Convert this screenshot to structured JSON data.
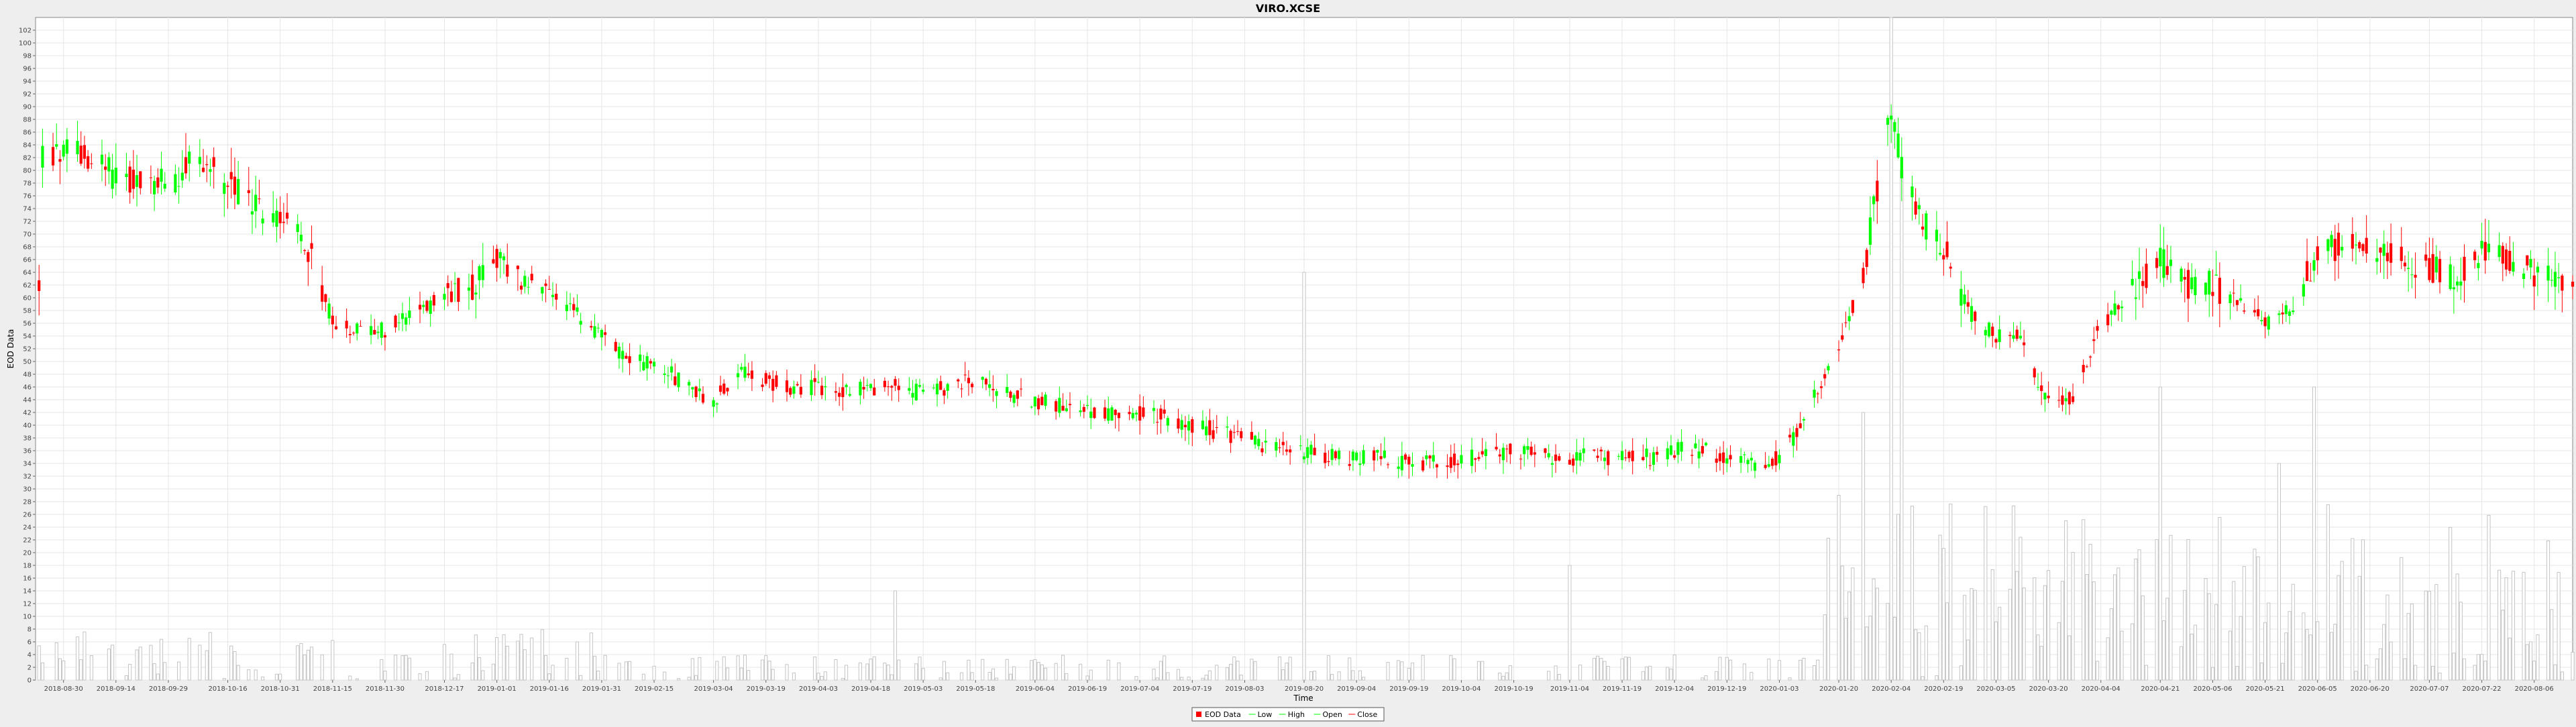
{
  "chart_data": {
    "type": "candlestick",
    "title": "VIRO.XCSE",
    "xlabel": "Time",
    "ylabel": "EOD Data",
    "ylim": [
      0,
      104
    ],
    "xlim": [
      "2018-08-22",
      "2020-08-17"
    ],
    "grid": true,
    "legend": {
      "placement": "bottom-center",
      "entries": [
        "EOD Data",
        "Low",
        "High",
        "Open",
        "Close"
      ]
    },
    "y_ticks": [
      0,
      2,
      4,
      6,
      8,
      10,
      12,
      14,
      16,
      18,
      20,
      22,
      24,
      26,
      28,
      30,
      32,
      34,
      36,
      38,
      40,
      42,
      44,
      46,
      48,
      50,
      52,
      54,
      56,
      58,
      60,
      62,
      64,
      66,
      68,
      70,
      72,
      74,
      76,
      78,
      80,
      82,
      84,
      86,
      88,
      90,
      92,
      94,
      96,
      98,
      100,
      102
    ],
    "x_ticks": [
      "2018-08-30",
      "2018-09-14",
      "2018-09-29",
      "2018-10-16",
      "2018-10-31",
      "2018-11-15",
      "2018-11-30",
      "2018-12-17",
      "2019-01-01",
      "2019-01-16",
      "2019-01-31",
      "2019-02-15",
      "2019-03-04",
      "2019-03-19",
      "2019-04-03",
      "2019-04-18",
      "2019-05-03",
      "2019-05-18",
      "2019-06-04",
      "2019-06-19",
      "2019-07-04",
      "2019-07-19",
      "2019-08-03",
      "2019-08-20",
      "2019-09-04",
      "2019-09-19",
      "2019-10-04",
      "2019-10-19",
      "2019-11-04",
      "2019-11-19",
      "2019-12-04",
      "2019-12-19",
      "2020-01-03",
      "2020-01-20",
      "2020-02-04",
      "2020-02-19",
      "2020-03-05",
      "2020-03-20",
      "2020-04-04",
      "2020-04-21",
      "2020-05-06",
      "2020-05-21",
      "2020-06-05",
      "2020-06-20",
      "2020-07-07",
      "2020-07-22",
      "2020-08-06"
    ],
    "price_anchors": [
      [
        "2018-08-24",
        82
      ],
      [
        "2018-09-05",
        83
      ],
      [
        "2018-09-14",
        79
      ],
      [
        "2018-09-22",
        78
      ],
      [
        "2018-09-29",
        78
      ],
      [
        "2018-10-08",
        82
      ],
      [
        "2018-10-16",
        78
      ],
      [
        "2018-10-25",
        74
      ],
      [
        "2018-10-31",
        72
      ],
      [
        "2018-11-08",
        68
      ],
      [
        "2018-11-15",
        56
      ],
      [
        "2018-11-22",
        55
      ],
      [
        "2018-11-30",
        55
      ],
      [
        "2018-12-10",
        58
      ],
      [
        "2018-12-17",
        60
      ],
      [
        "2018-12-25",
        62
      ],
      [
        "2019-01-01",
        66
      ],
      [
        "2019-01-10",
        62
      ],
      [
        "2019-01-16",
        60
      ],
      [
        "2019-01-25",
        57
      ],
      [
        "2019-01-31",
        54
      ],
      [
        "2019-02-08",
        50
      ],
      [
        "2019-02-15",
        50
      ],
      [
        "2019-02-25",
        46
      ],
      [
        "2019-03-04",
        44
      ],
      [
        "2019-03-12",
        49
      ],
      [
        "2019-03-19",
        47
      ],
      [
        "2019-03-27",
        46
      ],
      [
        "2019-04-03",
        46
      ],
      [
        "2019-04-12",
        45
      ],
      [
        "2019-04-18",
        46
      ],
      [
        "2019-04-26",
        46
      ],
      [
        "2019-05-03",
        45
      ],
      [
        "2019-05-10",
        46
      ],
      [
        "2019-05-18",
        47
      ],
      [
        "2019-05-26",
        45
      ],
      [
        "2019-06-04",
        44
      ],
      [
        "2019-06-12",
        43
      ],
      [
        "2019-06-19",
        42
      ],
      [
        "2019-06-27",
        42
      ],
      [
        "2019-07-04",
        42
      ],
      [
        "2019-07-12",
        41
      ],
      [
        "2019-07-19",
        40
      ],
      [
        "2019-07-27",
        39
      ],
      [
        "2019-08-03",
        38
      ],
      [
        "2019-08-12",
        36
      ],
      [
        "2019-08-20",
        36
      ],
      [
        "2019-08-28",
        35
      ],
      [
        "2019-09-04",
        35
      ],
      [
        "2019-09-12",
        35
      ],
      [
        "2019-09-19",
        34
      ],
      [
        "2019-09-27",
        34
      ],
      [
        "2019-10-04",
        35
      ],
      [
        "2019-10-12",
        35
      ],
      [
        "2019-10-19",
        36
      ],
      [
        "2019-10-27",
        35
      ],
      [
        "2019-11-04",
        35
      ],
      [
        "2019-11-12",
        35
      ],
      [
        "2019-11-19",
        35
      ],
      [
        "2019-11-27",
        35
      ],
      [
        "2019-12-04",
        36
      ],
      [
        "2019-12-12",
        36
      ],
      [
        "2019-12-19",
        35
      ],
      [
        "2019-12-27",
        34
      ],
      [
        "2020-01-03",
        35
      ],
      [
        "2020-01-10",
        40
      ],
      [
        "2020-01-15",
        47
      ],
      [
        "2020-01-20",
        52
      ],
      [
        "2020-01-27",
        64
      ],
      [
        "2020-02-01",
        80
      ],
      [
        "2020-02-04",
        90
      ],
      [
        "2020-02-08",
        78
      ],
      [
        "2020-02-13",
        72
      ],
      [
        "2020-02-19",
        68
      ],
      [
        "2020-02-26",
        58
      ],
      [
        "2020-03-05",
        54
      ],
      [
        "2020-03-12",
        54
      ],
      [
        "2020-03-17",
        46
      ],
      [
        "2020-03-22",
        43
      ],
      [
        "2020-03-28",
        45
      ],
      [
        "2020-04-04",
        56
      ],
      [
        "2020-04-12",
        60
      ],
      [
        "2020-04-21",
        66
      ],
      [
        "2020-04-28",
        62
      ],
      [
        "2020-05-06",
        62
      ],
      [
        "2020-05-12",
        60
      ],
      [
        "2020-05-21",
        56
      ],
      [
        "2020-05-28",
        58
      ],
      [
        "2020-06-05",
        67
      ],
      [
        "2020-06-12",
        68
      ],
      [
        "2020-06-20",
        67
      ],
      [
        "2020-06-28",
        66
      ],
      [
        "2020-07-07",
        65
      ],
      [
        "2020-07-15",
        63
      ],
      [
        "2020-07-22",
        67
      ],
      [
        "2020-07-30",
        66
      ],
      [
        "2020-08-06",
        64
      ],
      [
        "2020-08-17",
        62
      ]
    ],
    "volume_peaks": [
      [
        "2019-08-20",
        64
      ],
      [
        "2020-02-01",
        88
      ],
      [
        "2020-02-04",
        104
      ],
      [
        "2020-02-07",
        80
      ],
      [
        "2020-01-27",
        42
      ],
      [
        "2020-01-20",
        29
      ],
      [
        "2020-03-25",
        25
      ],
      [
        "2020-04-21",
        46
      ],
      [
        "2020-05-25",
        34
      ],
      [
        "2020-06-04",
        46
      ],
      [
        "2019-11-04",
        18
      ],
      [
        "2019-12-15",
        21
      ],
      [
        "2019-04-25",
        14
      ],
      [
        "2019-05-25",
        15
      ]
    ]
  }
}
